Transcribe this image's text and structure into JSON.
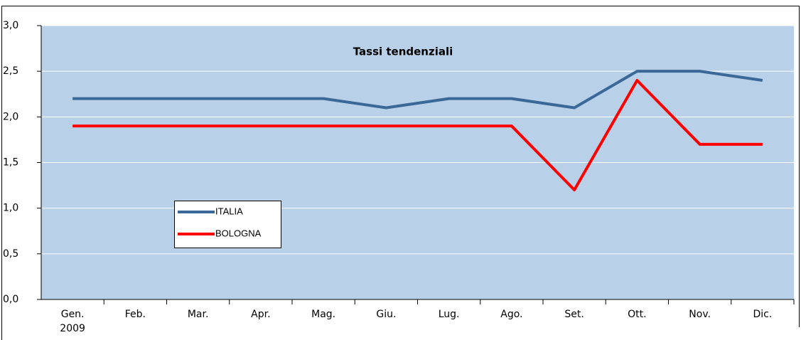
{
  "chart_data": {
    "type": "line",
    "title": "Tassi tendenziali",
    "categories": [
      "Gen.",
      "Feb.",
      "Mar.",
      "Apr.",
      "Mag.",
      "Giu.",
      "Lug.",
      "Ago.",
      "Set.",
      "Ott.",
      "Nov.",
      "Dic."
    ],
    "year": "2009",
    "series": [
      {
        "name": "ITALIA",
        "color": "#3a6898",
        "values": [
          2.2,
          2.2,
          2.2,
          2.2,
          2.2,
          2.1,
          2.2,
          2.2,
          2.1,
          2.5,
          2.5,
          2.4
        ]
      },
      {
        "name": "BOLOGNA",
        "color": "#ff0000",
        "values": [
          1.9,
          1.9,
          1.9,
          1.9,
          1.9,
          1.9,
          1.9,
          1.9,
          1.2,
          2.4,
          1.7,
          1.7
        ]
      }
    ],
    "ylim": [
      0,
      3
    ],
    "yticks": [
      {
        "value": 0,
        "label": "0,0"
      },
      {
        "value": 0.5,
        "label": "0,5"
      },
      {
        "value": 1,
        "label": "1,0"
      },
      {
        "value": 1.5,
        "label": "1,5"
      },
      {
        "value": 2,
        "label": "2,0"
      },
      {
        "value": 2.5,
        "label": "2,5"
      },
      {
        "value": 3,
        "label": "3,0"
      }
    ],
    "grid": true,
    "background": "#b9d1e8"
  }
}
